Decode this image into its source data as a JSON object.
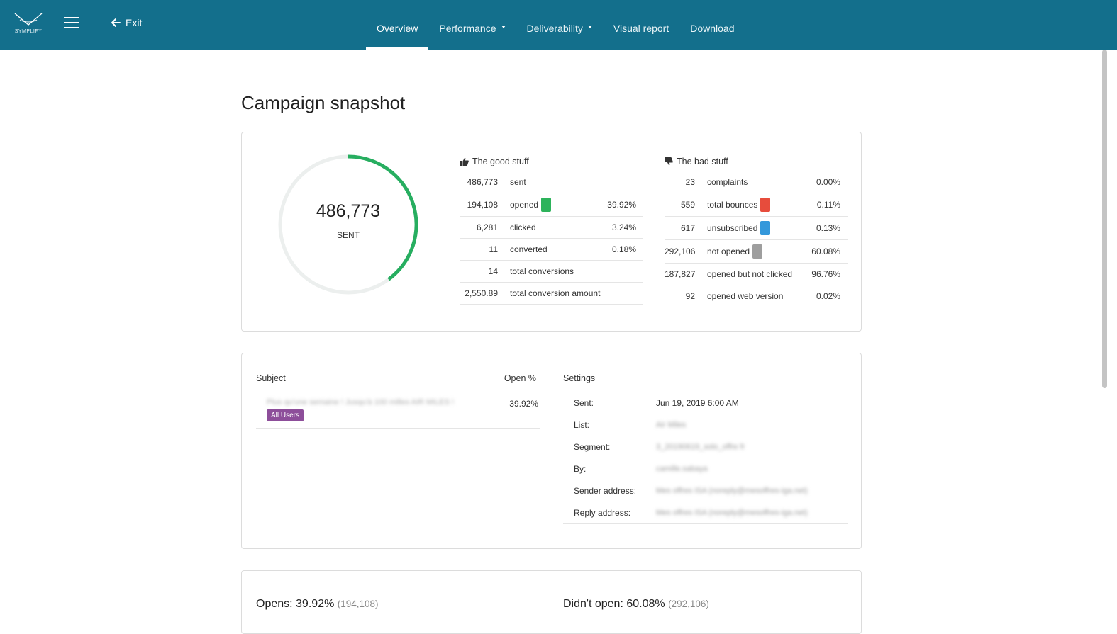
{
  "brand": {
    "logo_text": "SYMPLIFY",
    "accent": "#136f8c"
  },
  "header": {
    "exit_label": "Exit",
    "tabs": [
      {
        "label": "Overview",
        "active": true,
        "dropdown": false
      },
      {
        "label": "Performance",
        "active": false,
        "dropdown": true
      },
      {
        "label": "Deliverability",
        "active": false,
        "dropdown": true
      },
      {
        "label": "Visual report",
        "active": false,
        "dropdown": false
      },
      {
        "label": "Download",
        "active": false,
        "dropdown": false
      }
    ]
  },
  "page": {
    "title": "Campaign snapshot"
  },
  "snapshot": {
    "donut": {
      "value": "486,773",
      "label": "SENT",
      "fraction": 0.3992,
      "color": "#27ae60",
      "track": "#ecefee"
    },
    "good": {
      "title": "The good stuff",
      "rows": [
        {
          "num": "486,773",
          "label": "sent",
          "pct": ""
        },
        {
          "num": "194,108",
          "label": "opened",
          "pct": "39.92%",
          "swatch": "#2db35b"
        },
        {
          "num": "6,281",
          "label": "clicked",
          "pct": "3.24%"
        },
        {
          "num": "11",
          "label": "converted",
          "pct": "0.18%"
        },
        {
          "num": "14",
          "label": "total conversions",
          "pct": ""
        },
        {
          "num": "2,550.89",
          "label": "total conversion amount",
          "pct": ""
        }
      ]
    },
    "bad": {
      "title": "The bad stuff",
      "rows": [
        {
          "num": "23",
          "label": "complaints",
          "pct": "0.00%"
        },
        {
          "num": "559",
          "label": "total bounces",
          "pct": "0.11%",
          "swatch": "#e74c3c"
        },
        {
          "num": "617",
          "label": "unsubscribed",
          "pct": "0.13%",
          "swatch": "#3498db"
        },
        {
          "num": "292,106",
          "label": "not opened",
          "pct": "60.08%",
          "swatch": "#9e9e9e"
        },
        {
          "num": "187,827",
          "label": "opened but not clicked",
          "pct": "96.76%"
        },
        {
          "num": "92",
          "label": "opened web version",
          "pct": "0.02%"
        }
      ]
    }
  },
  "details": {
    "subject_header": "Subject",
    "open_header": "Open %",
    "subject_text": "Plus qu'une semaine ! Jusqu'à 100 milles AIR MILES !",
    "open_pct": "39.92%",
    "badge": "All Users",
    "settings_header": "Settings",
    "settings": [
      {
        "key": "Sent:",
        "value": "Jun 19, 2019 6:00 AM",
        "blurred": false
      },
      {
        "key": "List:",
        "value": "Air Miles",
        "blurred": true
      },
      {
        "key": "Segment:",
        "value": "3_20190619_solo_offre fr",
        "blurred": true
      },
      {
        "key": "By:",
        "value": "camille.sabaya",
        "blurred": true
      },
      {
        "key": "Sender address:",
        "value": "Mes offres ISA (noreply@mesoffres-iga.net)",
        "blurred": true
      },
      {
        "key": "Reply address:",
        "value": "Mes offres ISA (noreply@mesoffres-iga.net)",
        "blurred": true
      }
    ]
  },
  "opens": {
    "opens_label": "Opens: 39.92%",
    "opens_count": "(194,108)",
    "didnt_label": "Didn't open: 60.08%",
    "didnt_count": "(292,106)"
  }
}
